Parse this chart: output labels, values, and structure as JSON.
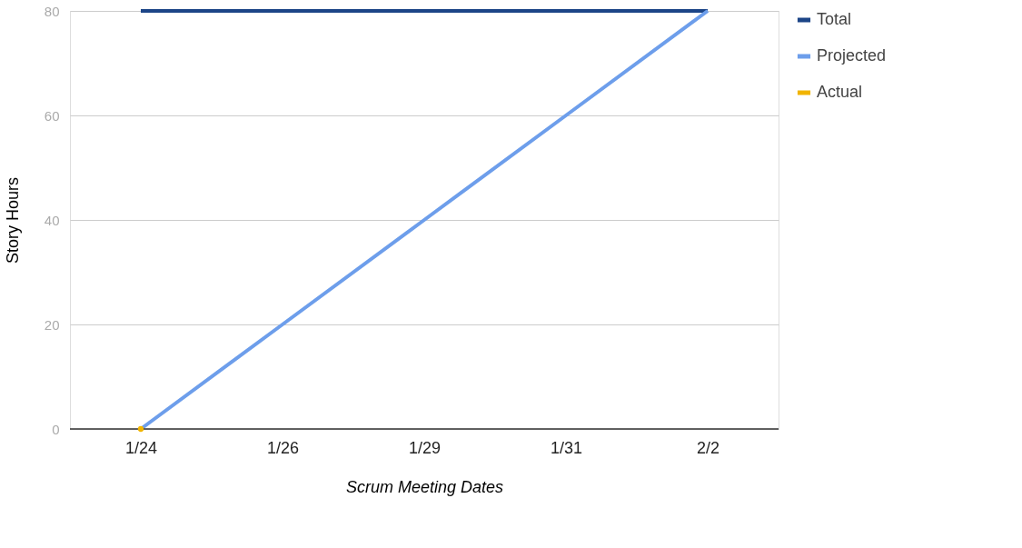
{
  "chart_data": {
    "type": "line",
    "xlabel": "Scrum Meeting Dates",
    "ylabel": "Story Hours",
    "categories": [
      "1/24",
      "1/26",
      "1/29",
      "1/31",
      "2/2"
    ],
    "series": [
      {
        "name": "Total",
        "color": "#1c4587",
        "values": [
          80,
          80,
          80,
          80,
          80
        ]
      },
      {
        "name": "Projected",
        "color": "#6d9eeb",
        "values": [
          0,
          20,
          40,
          60,
          80
        ]
      },
      {
        "name": "Actual",
        "color": "#f1b400",
        "marker": "circle",
        "values": [
          0,
          null,
          null,
          null,
          null
        ]
      }
    ],
    "ylim": [
      0,
      80
    ],
    "yticks": [
      0,
      20,
      40,
      60,
      80
    ],
    "grid": "y",
    "legend": "top right"
  }
}
